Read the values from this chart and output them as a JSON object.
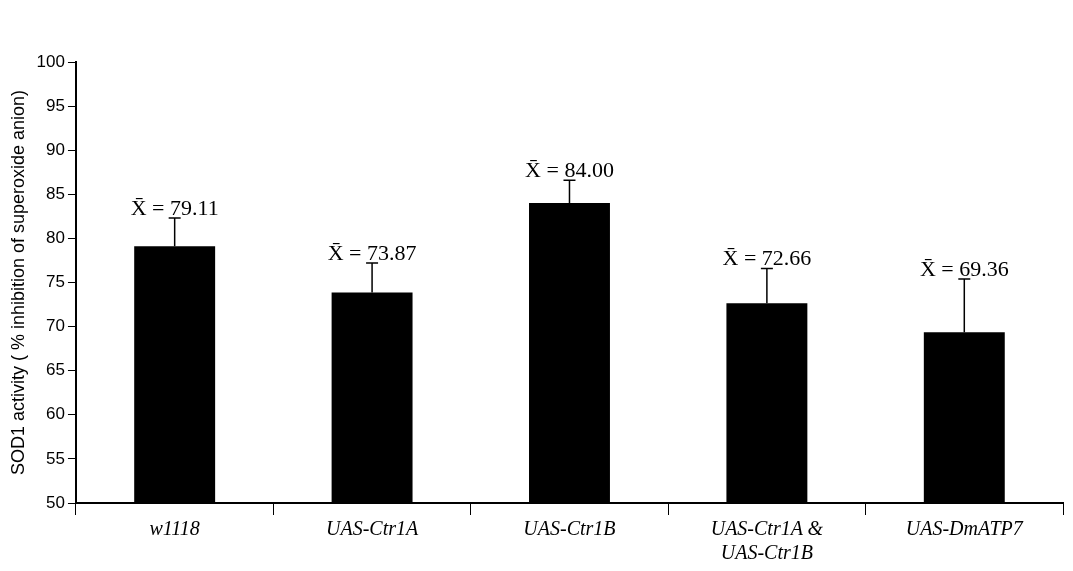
{
  "chart_data": {
    "type": "bar",
    "ylabel": "SOD1 activity ( % inhibition of superoxide anion)",
    "categories": [
      "w1118",
      "UAS-Ctr1A",
      "UAS-Ctr1B",
      "UAS-Ctr1A & UAS-Ctr1B",
      "UAS-DmATP7"
    ],
    "values": [
      79.11,
      73.87,
      84.0,
      72.66,
      69.36
    ],
    "errors": [
      [
        79.11,
        82.3
      ],
      [
        73.87,
        77.2
      ],
      [
        84.0,
        86.6
      ],
      [
        72.66,
        76.6
      ],
      [
        69.36,
        75.4
      ]
    ],
    "value_labels": [
      "X̄ = 79.11",
      "X̄ = 73.87",
      "X̄ = 84.00",
      "X̄ = 72.66",
      "X̄ = 69.36"
    ],
    "color": "#000000",
    "ylim": [
      50,
      100
    ],
    "yticks": [
      50,
      55,
      60,
      65,
      70,
      75,
      80,
      85,
      90,
      95,
      100
    ],
    "grid": false,
    "legend": false
  }
}
